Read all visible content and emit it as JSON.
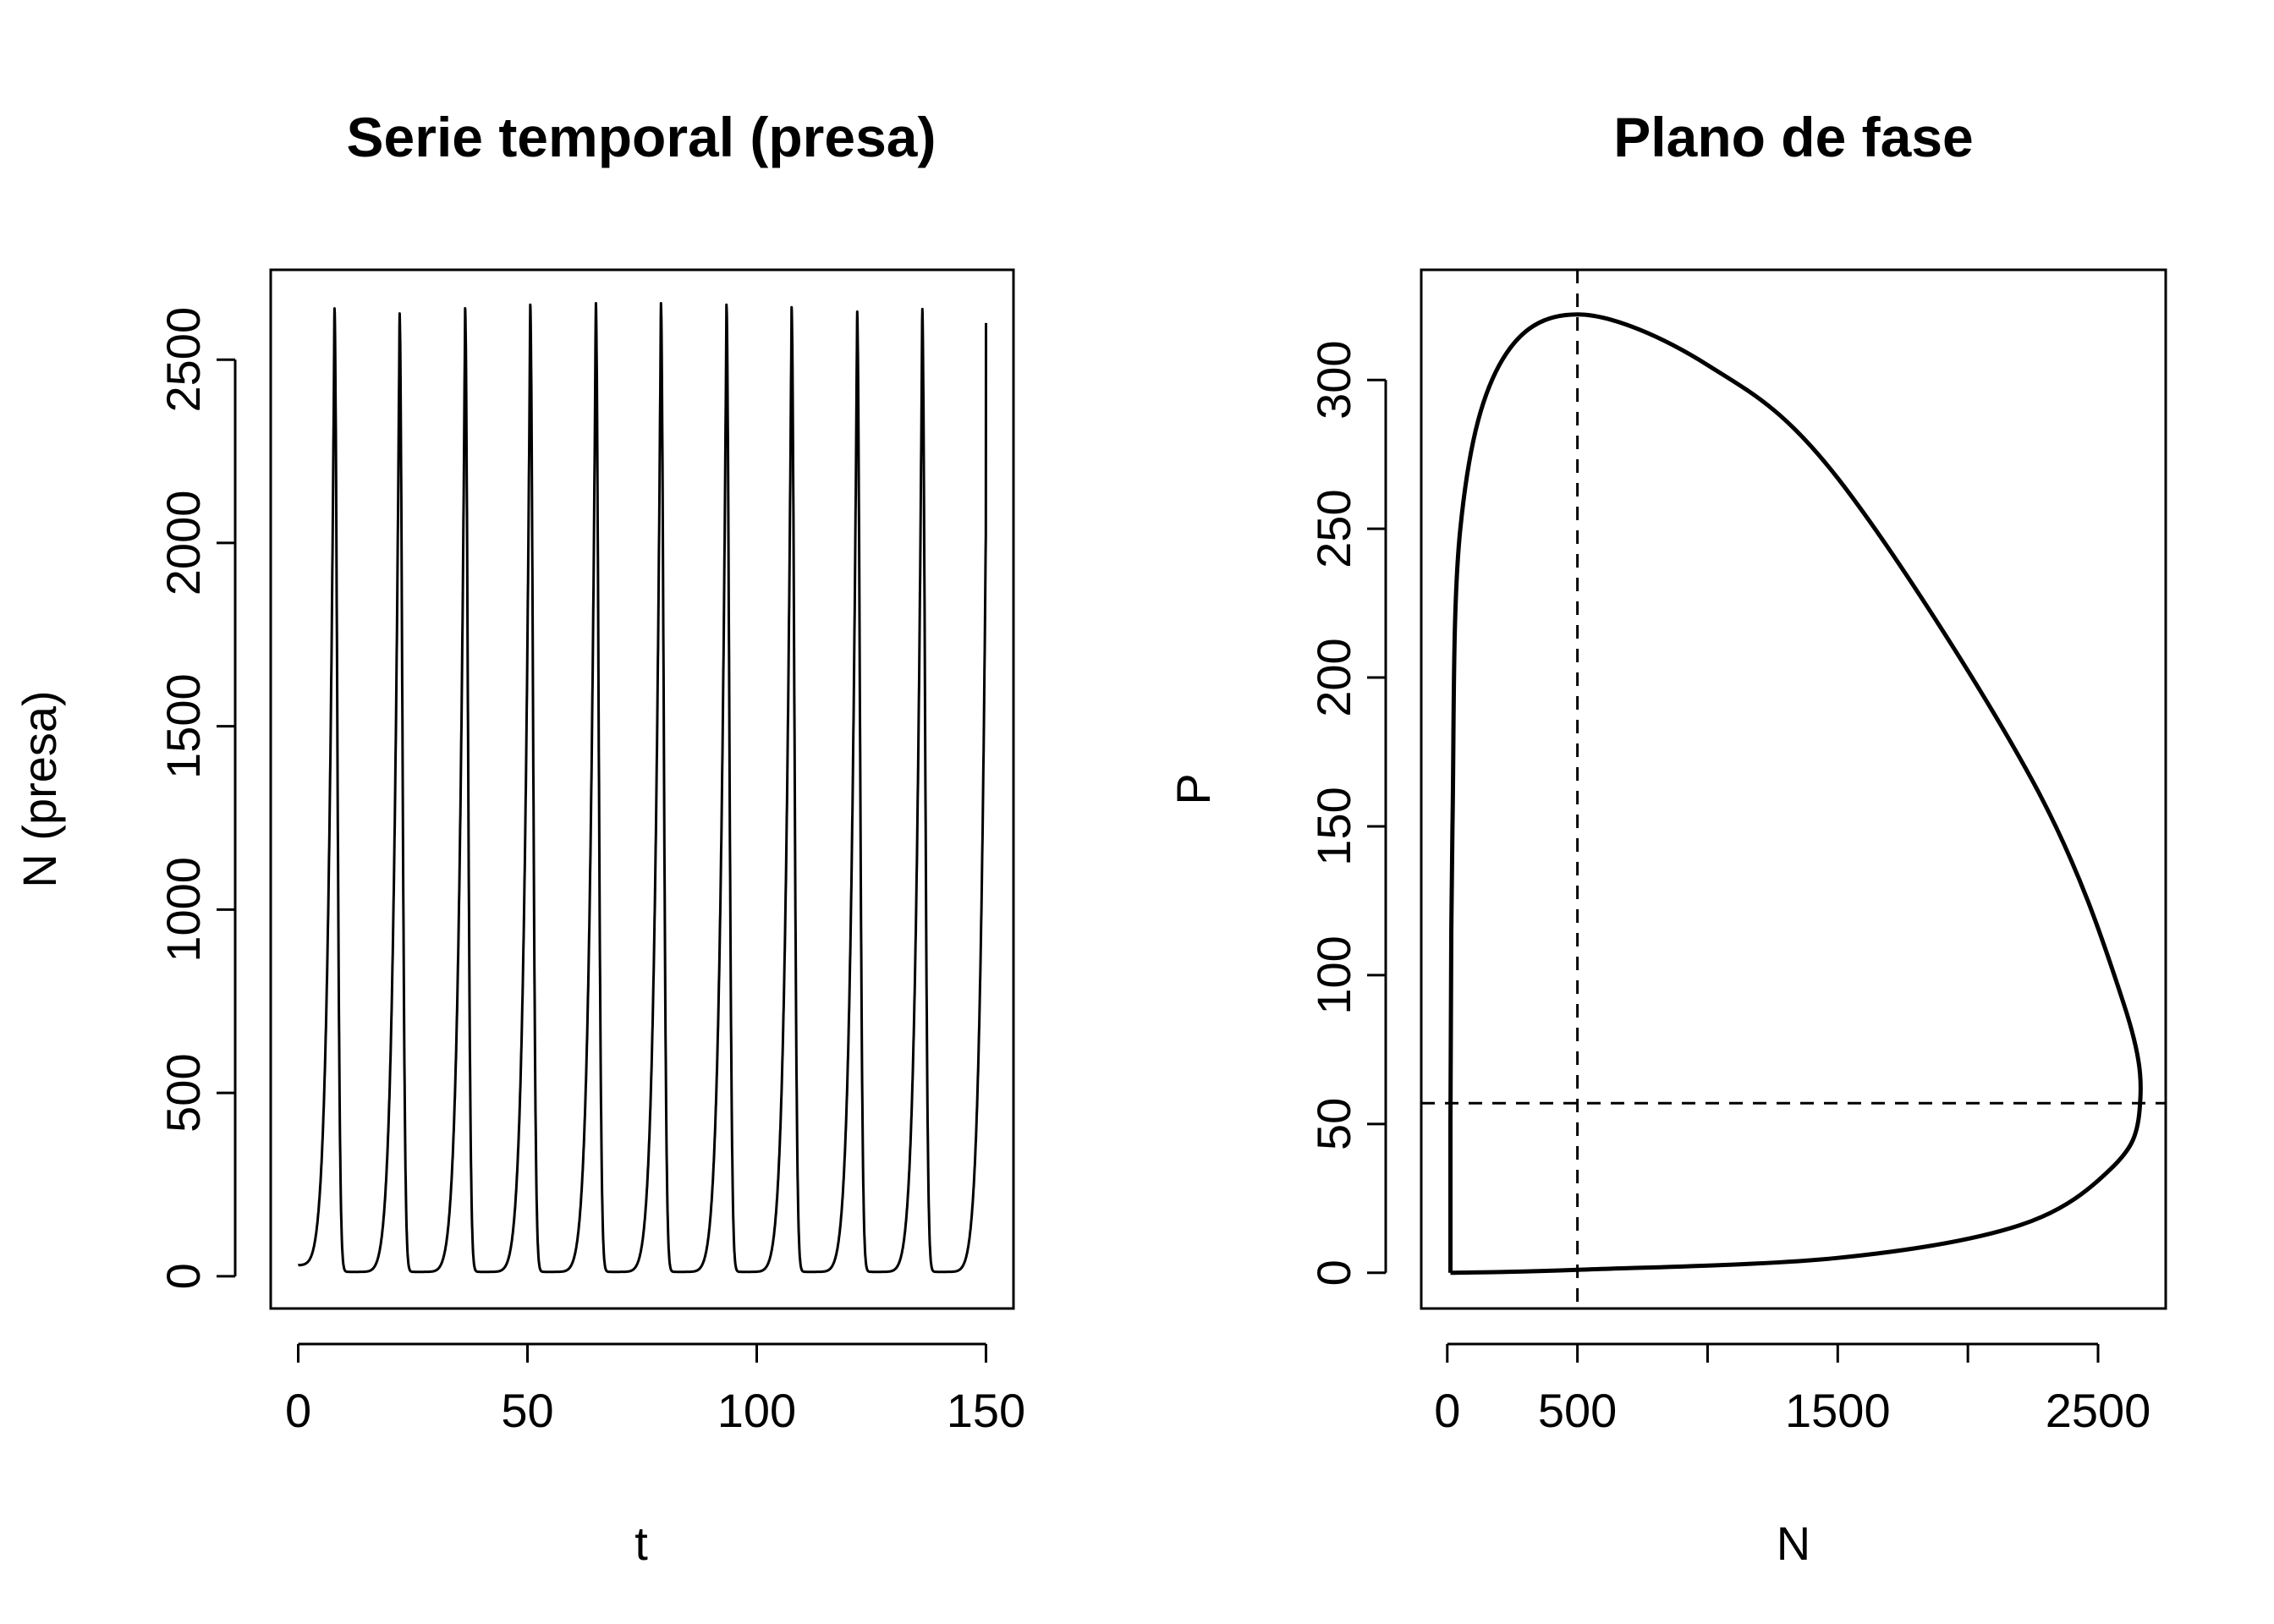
{
  "chart_data": [
    {
      "type": "line",
      "title": "Serie temporal (presa)",
      "xlabel": "t",
      "ylabel": "N (presa)",
      "xlim": [
        -6,
        156
      ],
      "ylim": [
        -88,
        2745
      ],
      "xticks": [
        "0",
        "50",
        "100",
        "150"
      ],
      "yticks": [
        "0",
        "500",
        "1000",
        "1500",
        "2000",
        "2500"
      ],
      "grid": false,
      "series": [
        {
          "t_range": [
            0,
            150
          ],
          "period": 14.25,
          "first_peak_t": 7.9,
          "minimum_N": 12,
          "peaks": [
            {
              "t": 7.9,
              "N": 2642
            },
            {
              "t": 22.1,
              "N": 2628
            },
            {
              "t": 36.4,
              "N": 2640
            },
            {
              "t": 50.6,
              "N": 2650
            },
            {
              "t": 64.9,
              "N": 2656
            },
            {
              "t": 79.1,
              "N": 2656
            },
            {
              "t": 93.4,
              "N": 2650
            },
            {
              "t": 107.6,
              "N": 2643
            },
            {
              "t": 121.9,
              "N": 2633
            },
            {
              "t": 136.1,
              "N": 2640
            }
          ],
          "start": {
            "t": 0,
            "N": 30
          },
          "end": {
            "t": 150,
            "N": 2600
          }
        }
      ]
    },
    {
      "type": "line",
      "title": "Plano de fase",
      "xlabel": "N",
      "ylabel": "P",
      "xlim": [
        -100,
        2760
      ],
      "ylim": [
        -12,
        337
      ],
      "xticks": [
        "0",
        "500",
        "1500",
        "2500"
      ],
      "xtick_marks": [
        0,
        500,
        1000,
        1500,
        2000,
        2500
      ],
      "yticks": [
        "0",
        "50",
        "100",
        "150",
        "200",
        "250",
        "300"
      ],
      "grid": false,
      "series": [
        {
          "orbit": [
            {
              "N": 12,
              "P": 0
            },
            {
              "N": 500,
              "P": 1
            },
            {
              "N": 1500,
              "P": 5
            },
            {
              "N": 2200,
              "P": 16
            },
            {
              "N": 2550,
              "P": 35
            },
            {
              "N": 2660,
              "P": 55
            },
            {
              "N": 2600,
              "P": 90
            },
            {
              "N": 2250,
              "P": 165
            },
            {
              "N": 1500,
              "P": 267
            },
            {
              "N": 1000,
              "P": 305
            },
            {
              "N": 500,
              "P": 322
            },
            {
              "N": 200,
              "P": 305
            },
            {
              "N": 50,
              "P": 250
            },
            {
              "N": 20,
              "P": 150
            },
            {
              "N": 12,
              "P": 50
            },
            {
              "N": 12,
              "P": 0
            }
          ]
        }
      ],
      "reference_lines": {
        "vertical_N": 500,
        "horizontal_P": 57
      }
    }
  ]
}
